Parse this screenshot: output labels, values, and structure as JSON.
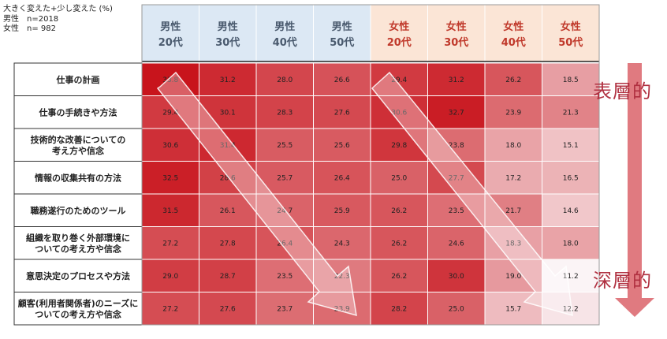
{
  "legend": {
    "title": "大きく変えた+少し変えた (%)",
    "male": "男性　n=2018",
    "female": "女性　n= 982"
  },
  "side": {
    "top_label": "表層的",
    "bottom_label": "深層的"
  },
  "colors": {
    "male_header_bg": "#dce8f4",
    "female_header_bg": "#fbe5d6",
    "male_header_text": "#4a5a6e",
    "female_header_text": "#c0392b",
    "side_label": "#b03040",
    "arrow": "#e07a80"
  },
  "chart_data": {
    "type": "heatmap",
    "title": "",
    "columns": [
      {
        "gender": "男性",
        "age": "20代"
      },
      {
        "gender": "男性",
        "age": "30代"
      },
      {
        "gender": "男性",
        "age": "40代"
      },
      {
        "gender": "男性",
        "age": "50代"
      },
      {
        "gender": "女性",
        "age": "20代"
      },
      {
        "gender": "女性",
        "age": "30代"
      },
      {
        "gender": "女性",
        "age": "40代"
      },
      {
        "gender": "女性",
        "age": "50代"
      }
    ],
    "rows": [
      {
        "label": [
          "仕事の計画"
        ],
        "values": [
          33.8,
          31.2,
          28.0,
          26.6,
          29.4,
          31.2,
          26.2,
          18.5
        ]
      },
      {
        "label": [
          "仕事の手続きや方法"
        ],
        "values": [
          29.4,
          30.1,
          28.3,
          27.6,
          30.6,
          32.7,
          23.9,
          21.3
        ]
      },
      {
        "label": [
          "技術的な改善についての",
          "考え方や信念"
        ],
        "values": [
          30.6,
          31.4,
          25.5,
          25.6,
          29.8,
          23.8,
          18.0,
          15.1
        ]
      },
      {
        "label": [
          "情報の収集共有の方法"
        ],
        "values": [
          32.5,
          28.6,
          25.7,
          26.4,
          25.0,
          27.7,
          17.2,
          16.5
        ]
      },
      {
        "label": [
          "職務遂行のためのツール"
        ],
        "values": [
          31.5,
          26.1,
          24.7,
          25.9,
          26.2,
          23.5,
          21.7,
          14.6
        ]
      },
      {
        "label": [
          "組織を取り巻く外部環境に",
          "ついての考え方や信念"
        ],
        "values": [
          27.2,
          27.8,
          26.4,
          24.3,
          26.2,
          24.6,
          18.3,
          18.0
        ]
      },
      {
        "label": [
          "意思決定のプロセスや方法"
        ],
        "values": [
          29.0,
          28.7,
          23.5,
          22.3,
          26.2,
          30.0,
          19.0,
          11.2
        ]
      },
      {
        "label": [
          "顧客(利用者関係者)のニーズに",
          "ついての考え方や信念"
        ],
        "values": [
          27.2,
          27.6,
          23.7,
          23.9,
          28.2,
          25.0,
          15.7,
          12.2
        ]
      }
    ],
    "color_scale": {
      "low": "#fbf4f6",
      "high": "#c8141c"
    },
    "vmin": 11.2,
    "vmax": 33.8
  }
}
